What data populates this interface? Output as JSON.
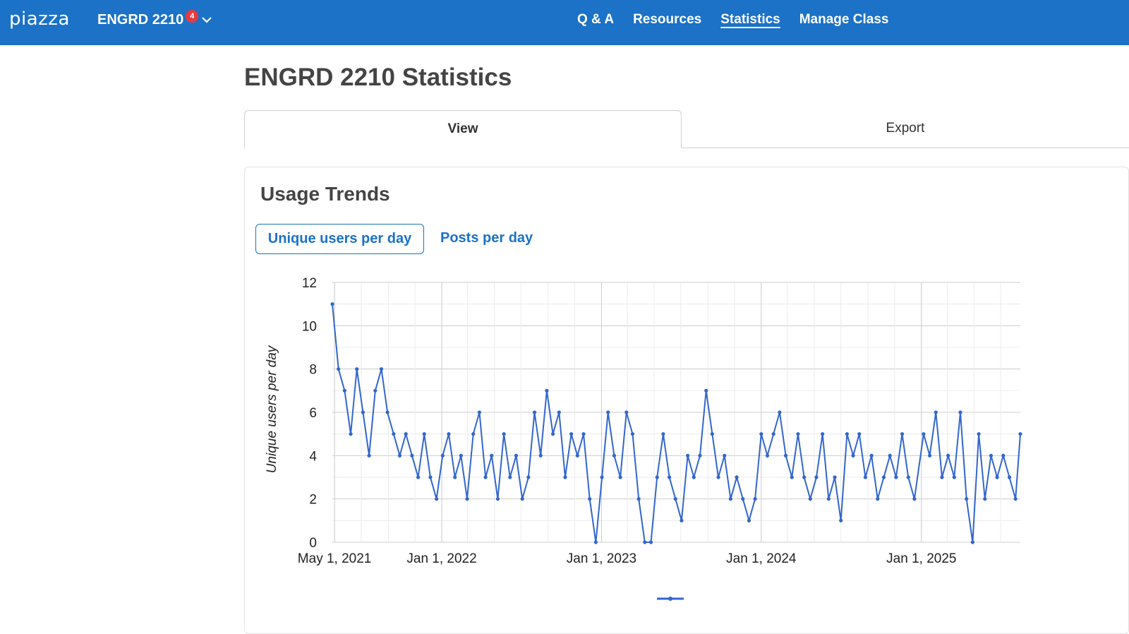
{
  "app": {
    "logo": "piazza",
    "class_name": "ENGRD 2210",
    "notification_count": "4"
  },
  "nav": {
    "items": [
      "Q & A",
      "Resources",
      "Statistics",
      "Manage Class"
    ],
    "active": "Statistics"
  },
  "page": {
    "title": "ENGRD 2210 Statistics"
  },
  "tabs": {
    "view": "View",
    "export": "Export",
    "active": "View"
  },
  "card": {
    "title": "Usage Trends",
    "toggle_users": "Unique users per day",
    "toggle_posts": "Posts per day",
    "active_toggle": "Unique users per day"
  },
  "colors": {
    "brand": "#1b72c7",
    "badge": "#e8393f",
    "series": "#3366cc"
  },
  "icons": {
    "chevron": "chevron-down-icon"
  },
  "chart_data": {
    "type": "line",
    "ylabel": "Unique users per day",
    "xlabel": "",
    "ylim": [
      0,
      12
    ],
    "y_ticks": [
      0,
      2,
      4,
      6,
      8,
      10,
      12
    ],
    "x_ticks": [
      "May 1, 2021",
      "Jan 1, 2022",
      "Jan 1, 2023",
      "Jan 1, 2024",
      "Jan 1, 2025"
    ],
    "xlim": [
      "2021-04-26",
      "2025-08-15"
    ],
    "grid": true,
    "legend_placement": "bottom",
    "series": [
      {
        "points": [
          [
            "2021-04-26",
            11
          ],
          [
            "2021-05-10",
            8
          ],
          [
            "2021-05-24",
            7
          ],
          [
            "2021-06-07",
            5
          ],
          [
            "2021-06-21",
            8
          ],
          [
            "2021-07-05",
            6
          ],
          [
            "2021-07-19",
            4
          ],
          [
            "2021-08-02",
            7
          ],
          [
            "2021-08-16",
            8
          ],
          [
            "2021-08-30",
            6
          ],
          [
            "2021-09-13",
            5
          ],
          [
            "2021-09-27",
            4
          ],
          [
            "2021-10-11",
            5
          ],
          [
            "2021-10-25",
            4
          ],
          [
            "2021-11-08",
            3
          ],
          [
            "2021-11-22",
            5
          ],
          [
            "2021-12-06",
            3
          ],
          [
            "2021-12-20",
            2
          ],
          [
            "2022-01-03",
            4
          ],
          [
            "2022-01-17",
            5
          ],
          [
            "2022-01-31",
            3
          ],
          [
            "2022-02-14",
            4
          ],
          [
            "2022-02-28",
            2
          ],
          [
            "2022-03-14",
            5
          ],
          [
            "2022-03-28",
            6
          ],
          [
            "2022-04-11",
            3
          ],
          [
            "2022-04-25",
            4
          ],
          [
            "2022-05-09",
            2
          ],
          [
            "2022-05-23",
            5
          ],
          [
            "2022-06-06",
            3
          ],
          [
            "2022-06-20",
            4
          ],
          [
            "2022-07-04",
            2
          ],
          [
            "2022-07-18",
            3
          ],
          [
            "2022-08-01",
            6
          ],
          [
            "2022-08-15",
            4
          ],
          [
            "2022-08-29",
            7
          ],
          [
            "2022-09-12",
            5
          ],
          [
            "2022-09-26",
            6
          ],
          [
            "2022-10-10",
            3
          ],
          [
            "2022-10-24",
            5
          ],
          [
            "2022-11-07",
            4
          ],
          [
            "2022-11-21",
            5
          ],
          [
            "2022-12-05",
            2
          ],
          [
            "2022-12-19",
            0
          ],
          [
            "2023-01-02",
            3
          ],
          [
            "2023-01-16",
            6
          ],
          [
            "2023-01-30",
            4
          ],
          [
            "2023-02-13",
            3
          ],
          [
            "2023-02-27",
            6
          ],
          [
            "2023-03-13",
            5
          ],
          [
            "2023-03-27",
            2
          ],
          [
            "2023-04-10",
            0
          ],
          [
            "2023-04-24",
            0
          ],
          [
            "2023-05-08",
            3
          ],
          [
            "2023-05-22",
            5
          ],
          [
            "2023-06-05",
            3
          ],
          [
            "2023-06-19",
            2
          ],
          [
            "2023-07-03",
            1
          ],
          [
            "2023-07-17",
            4
          ],
          [
            "2023-07-31",
            3
          ],
          [
            "2023-08-14",
            4
          ],
          [
            "2023-08-28",
            7
          ],
          [
            "2023-09-11",
            5
          ],
          [
            "2023-09-25",
            3
          ],
          [
            "2023-10-09",
            4
          ],
          [
            "2023-10-23",
            2
          ],
          [
            "2023-11-06",
            3
          ],
          [
            "2023-11-20",
            2
          ],
          [
            "2023-12-04",
            1
          ],
          [
            "2023-12-18",
            2
          ],
          [
            "2024-01-01",
            5
          ],
          [
            "2024-01-15",
            4
          ],
          [
            "2024-01-29",
            5
          ],
          [
            "2024-02-12",
            6
          ],
          [
            "2024-02-26",
            4
          ],
          [
            "2024-03-11",
            3
          ],
          [
            "2024-03-25",
            5
          ],
          [
            "2024-04-08",
            3
          ],
          [
            "2024-04-22",
            2
          ],
          [
            "2024-05-06",
            3
          ],
          [
            "2024-05-20",
            5
          ],
          [
            "2024-06-03",
            2
          ],
          [
            "2024-06-17",
            3
          ],
          [
            "2024-07-01",
            1
          ],
          [
            "2024-07-15",
            5
          ],
          [
            "2024-07-29",
            4
          ],
          [
            "2024-08-12",
            5
          ],
          [
            "2024-08-26",
            3
          ],
          [
            "2024-09-09",
            4
          ],
          [
            "2024-09-23",
            2
          ],
          [
            "2024-10-07",
            3
          ],
          [
            "2024-10-21",
            4
          ],
          [
            "2024-11-04",
            3
          ],
          [
            "2024-11-18",
            5
          ],
          [
            "2024-12-02",
            3
          ],
          [
            "2024-12-16",
            2
          ],
          [
            "2025-01-06",
            5
          ],
          [
            "2025-01-20",
            4
          ],
          [
            "2025-02-03",
            6
          ],
          [
            "2025-02-17",
            3
          ],
          [
            "2025-03-03",
            4
          ],
          [
            "2025-03-17",
            3
          ],
          [
            "2025-03-31",
            6
          ],
          [
            "2025-04-14",
            2
          ],
          [
            "2025-04-28",
            0
          ],
          [
            "2025-05-12",
            5
          ],
          [
            "2025-05-26",
            2
          ],
          [
            "2025-06-09",
            4
          ],
          [
            "2025-06-23",
            3
          ],
          [
            "2025-07-07",
            4
          ],
          [
            "2025-07-21",
            3
          ],
          [
            "2025-08-04",
            2
          ],
          [
            "2025-08-15",
            5
          ]
        ]
      }
    ]
  }
}
